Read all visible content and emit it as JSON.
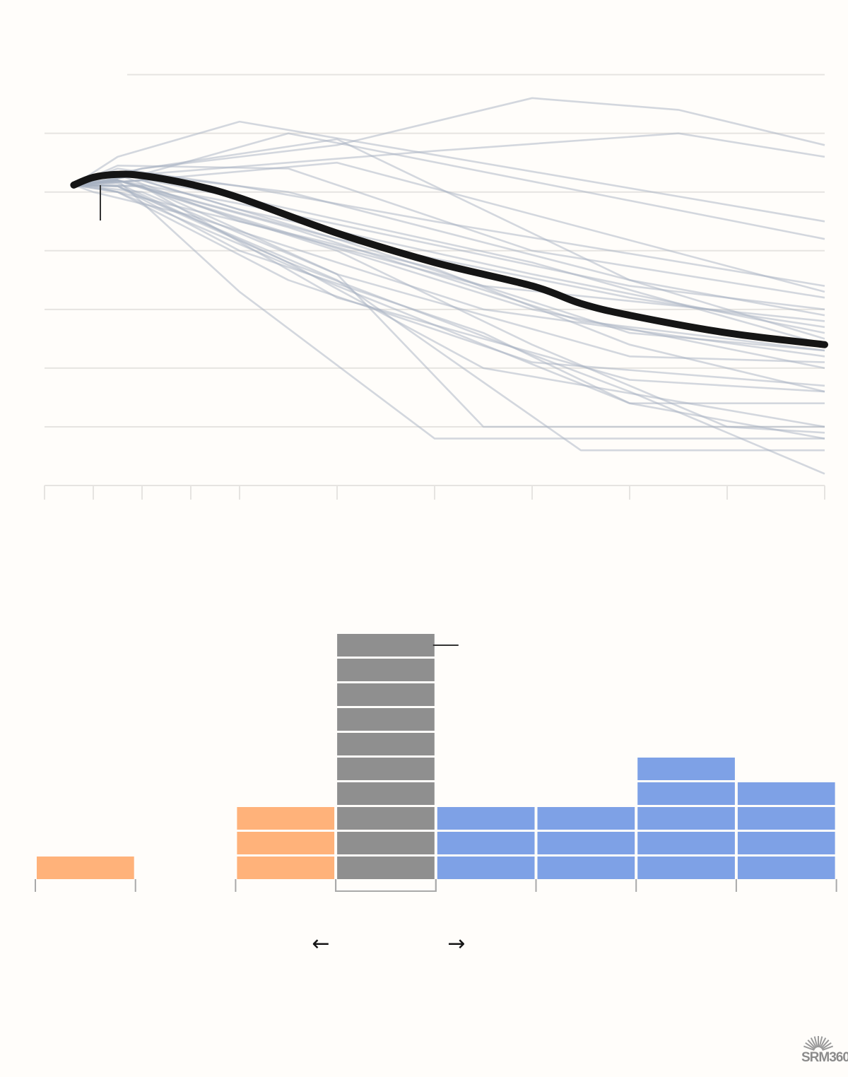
{
  "brand": {
    "logo_text": "SRM360",
    "logo_name": "sunburst-logo"
  },
  "colors": {
    "background": "#fffdfa",
    "grid": "#e6e4e1",
    "spaghetti": "#a7b1c2",
    "mean_line": "#151515",
    "bar_before": "#ffb27a",
    "bar_center": "#8f8f8f",
    "bar_after": "#7ea1e6",
    "axis": "#a9a9a9"
  },
  "chart_data": [
    {
      "type": "line",
      "title": "",
      "xlabel": "",
      "ylabel": "",
      "x_ticks": [
        0,
        1,
        2,
        3,
        4,
        6,
        8,
        10,
        12,
        14,
        16
      ],
      "xlim": [
        0,
        16
      ],
      "ylim": [
        0,
        7.2
      ],
      "y_gridlines": [
        1,
        2,
        3,
        4,
        5,
        6,
        7
      ],
      "grid": true,
      "mean_series": {
        "x": [
          0.6,
          1,
          1.5,
          2,
          3,
          4,
          6,
          8,
          10,
          11,
          12,
          14,
          16
        ],
        "y": [
          5.12,
          5.25,
          5.3,
          5.28,
          5.13,
          4.9,
          4.3,
          3.8,
          3.4,
          3.1,
          2.9,
          2.6,
          2.4
        ]
      },
      "ensemble": [
        {
          "x": [
            0.6,
            2,
            6,
            10,
            13,
            16
          ],
          "y": [
            5.12,
            5.4,
            5.8,
            6.6,
            6.4,
            5.8
          ]
        },
        {
          "x": [
            0.6,
            2,
            8,
            13,
            16
          ],
          "y": [
            5.12,
            5.3,
            5.7,
            6.0,
            5.6
          ]
        },
        {
          "x": [
            0.6,
            1.5,
            4,
            16
          ],
          "y": [
            5.12,
            5.6,
            6.2,
            4.5
          ]
        },
        {
          "x": [
            0.6,
            2,
            5,
            16
          ],
          "y": [
            5.12,
            5.3,
            6.0,
            4.2
          ]
        },
        {
          "x": [
            0.6,
            2,
            6,
            12,
            16
          ],
          "y": [
            5.12,
            5.4,
            5.9,
            3.5,
            2.9
          ]
        },
        {
          "x": [
            0.6,
            2,
            6,
            16
          ],
          "y": [
            5.12,
            5.2,
            5.5,
            3.3
          ]
        },
        {
          "x": [
            0.6,
            1.5,
            5,
            10,
            16
          ],
          "y": [
            5.12,
            5.45,
            5.4,
            4.0,
            3.2
          ]
        },
        {
          "x": [
            0.6,
            1.5,
            4,
            8,
            16
          ],
          "y": [
            5.12,
            5.4,
            5.1,
            4.5,
            3.4
          ]
        },
        {
          "x": [
            0.6,
            2,
            5,
            12,
            14,
            16
          ],
          "y": [
            5.12,
            5.3,
            5.0,
            3.5,
            3.0,
            2.5
          ]
        },
        {
          "x": [
            0.6,
            1.5,
            4,
            10,
            16
          ],
          "y": [
            5.12,
            5.3,
            4.9,
            3.8,
            2.4
          ]
        },
        {
          "x": [
            0.6,
            1.5,
            4,
            12,
            16
          ],
          "y": [
            5.12,
            5.2,
            4.8,
            3.4,
            3.0
          ]
        },
        {
          "x": [
            0.6,
            1,
            4,
            9,
            16
          ],
          "y": [
            5.12,
            5.1,
            4.5,
            3.4,
            2.8
          ]
        },
        {
          "x": [
            0.6,
            1,
            3,
            9,
            16
          ],
          "y": [
            5.12,
            5.0,
            4.6,
            3.0,
            2.2
          ]
        },
        {
          "x": [
            0.6,
            1.5,
            6,
            12,
            16
          ],
          "y": [
            5.12,
            5.2,
            4.2,
            3.2,
            2.7
          ]
        },
        {
          "x": [
            0.6,
            2,
            4,
            10,
            16
          ],
          "y": [
            5.12,
            5.2,
            4.7,
            3.6,
            2.6
          ]
        },
        {
          "x": [
            0.6,
            2,
            6,
            12,
            16
          ],
          "y": [
            5.12,
            5.2,
            4.2,
            2.6,
            2.3
          ]
        },
        {
          "x": [
            0.6,
            1.5,
            5,
            10,
            16
          ],
          "y": [
            5.12,
            5.2,
            4.3,
            3.0,
            2.0
          ]
        },
        {
          "x": [
            0.6,
            1.5,
            4,
            8,
            12,
            16
          ],
          "y": [
            5.12,
            5.3,
            4.5,
            3.7,
            2.4,
            1.6
          ]
        },
        {
          "x": [
            0.6,
            1.5,
            4,
            9,
            12,
            16
          ],
          "y": [
            5.12,
            5.1,
            4.0,
            2.6,
            1.4,
            1.4
          ]
        },
        {
          "x": [
            0.6,
            1.5,
            6,
            11,
            16
          ],
          "y": [
            5.12,
            5.1,
            3.5,
            0.6,
            0.6
          ]
        },
        {
          "x": [
            0.6,
            1.5,
            4,
            8,
            16
          ],
          "y": [
            5.12,
            5.2,
            3.3,
            0.8,
            0.8
          ]
        },
        {
          "x": [
            0.6,
            2,
            6,
            9,
            16
          ],
          "y": [
            5.12,
            5.1,
            3.6,
            1.0,
            1.0
          ]
        },
        {
          "x": [
            0.6,
            1.5,
            5,
            9,
            16
          ],
          "y": [
            5.12,
            5.1,
            3.8,
            2.0,
            1.0
          ]
        },
        {
          "x": [
            0.6,
            1.5,
            6,
            12,
            16
          ],
          "y": [
            5.12,
            5.0,
            3.4,
            1.4,
            0.8
          ]
        },
        {
          "x": [
            0.6,
            1.5,
            6,
            10,
            14,
            16
          ],
          "y": [
            5.12,
            5.2,
            4.0,
            2.4,
            1.0,
            0.9
          ]
        },
        {
          "x": [
            0.6,
            1.5,
            5,
            12,
            16
          ],
          "y": [
            5.12,
            5.15,
            3.8,
            1.6,
            0.2
          ]
        },
        {
          "x": [
            0.6,
            2,
            6,
            12,
            16
          ],
          "y": [
            5.12,
            5.1,
            3.2,
            1.8,
            1.6
          ]
        },
        {
          "x": [
            0.6,
            1.5,
            5,
            10,
            16
          ],
          "y": [
            5.12,
            5.0,
            3.5,
            2.1,
            1.7
          ]
        },
        {
          "x": [
            0.6,
            2,
            6,
            12,
            16
          ],
          "y": [
            5.12,
            5.0,
            3.6,
            2.2,
            2.1
          ]
        },
        {
          "x": [
            0.6,
            1.5,
            5,
            11,
            16
          ],
          "y": [
            5.12,
            5.2,
            4.4,
            2.8,
            2.3
          ]
        }
      ]
    },
    {
      "type": "bar",
      "title": "",
      "xlabel": "",
      "ylabel": "",
      "categories": [
        "",
        "",
        "",
        "",
        "",
        "",
        "",
        ""
      ],
      "values": [
        1,
        0,
        3,
        10,
        3,
        3,
        5,
        4
      ],
      "colors": [
        "#ffb27a",
        "#ffb27a",
        "#ffb27a",
        "#8f8f8f",
        "#7ea1e6",
        "#7ea1e6",
        "#7ea1e6",
        "#7ea1e6"
      ],
      "highlighted_bin": 3,
      "arrows": {
        "left": "←",
        "right": "→"
      }
    }
  ]
}
